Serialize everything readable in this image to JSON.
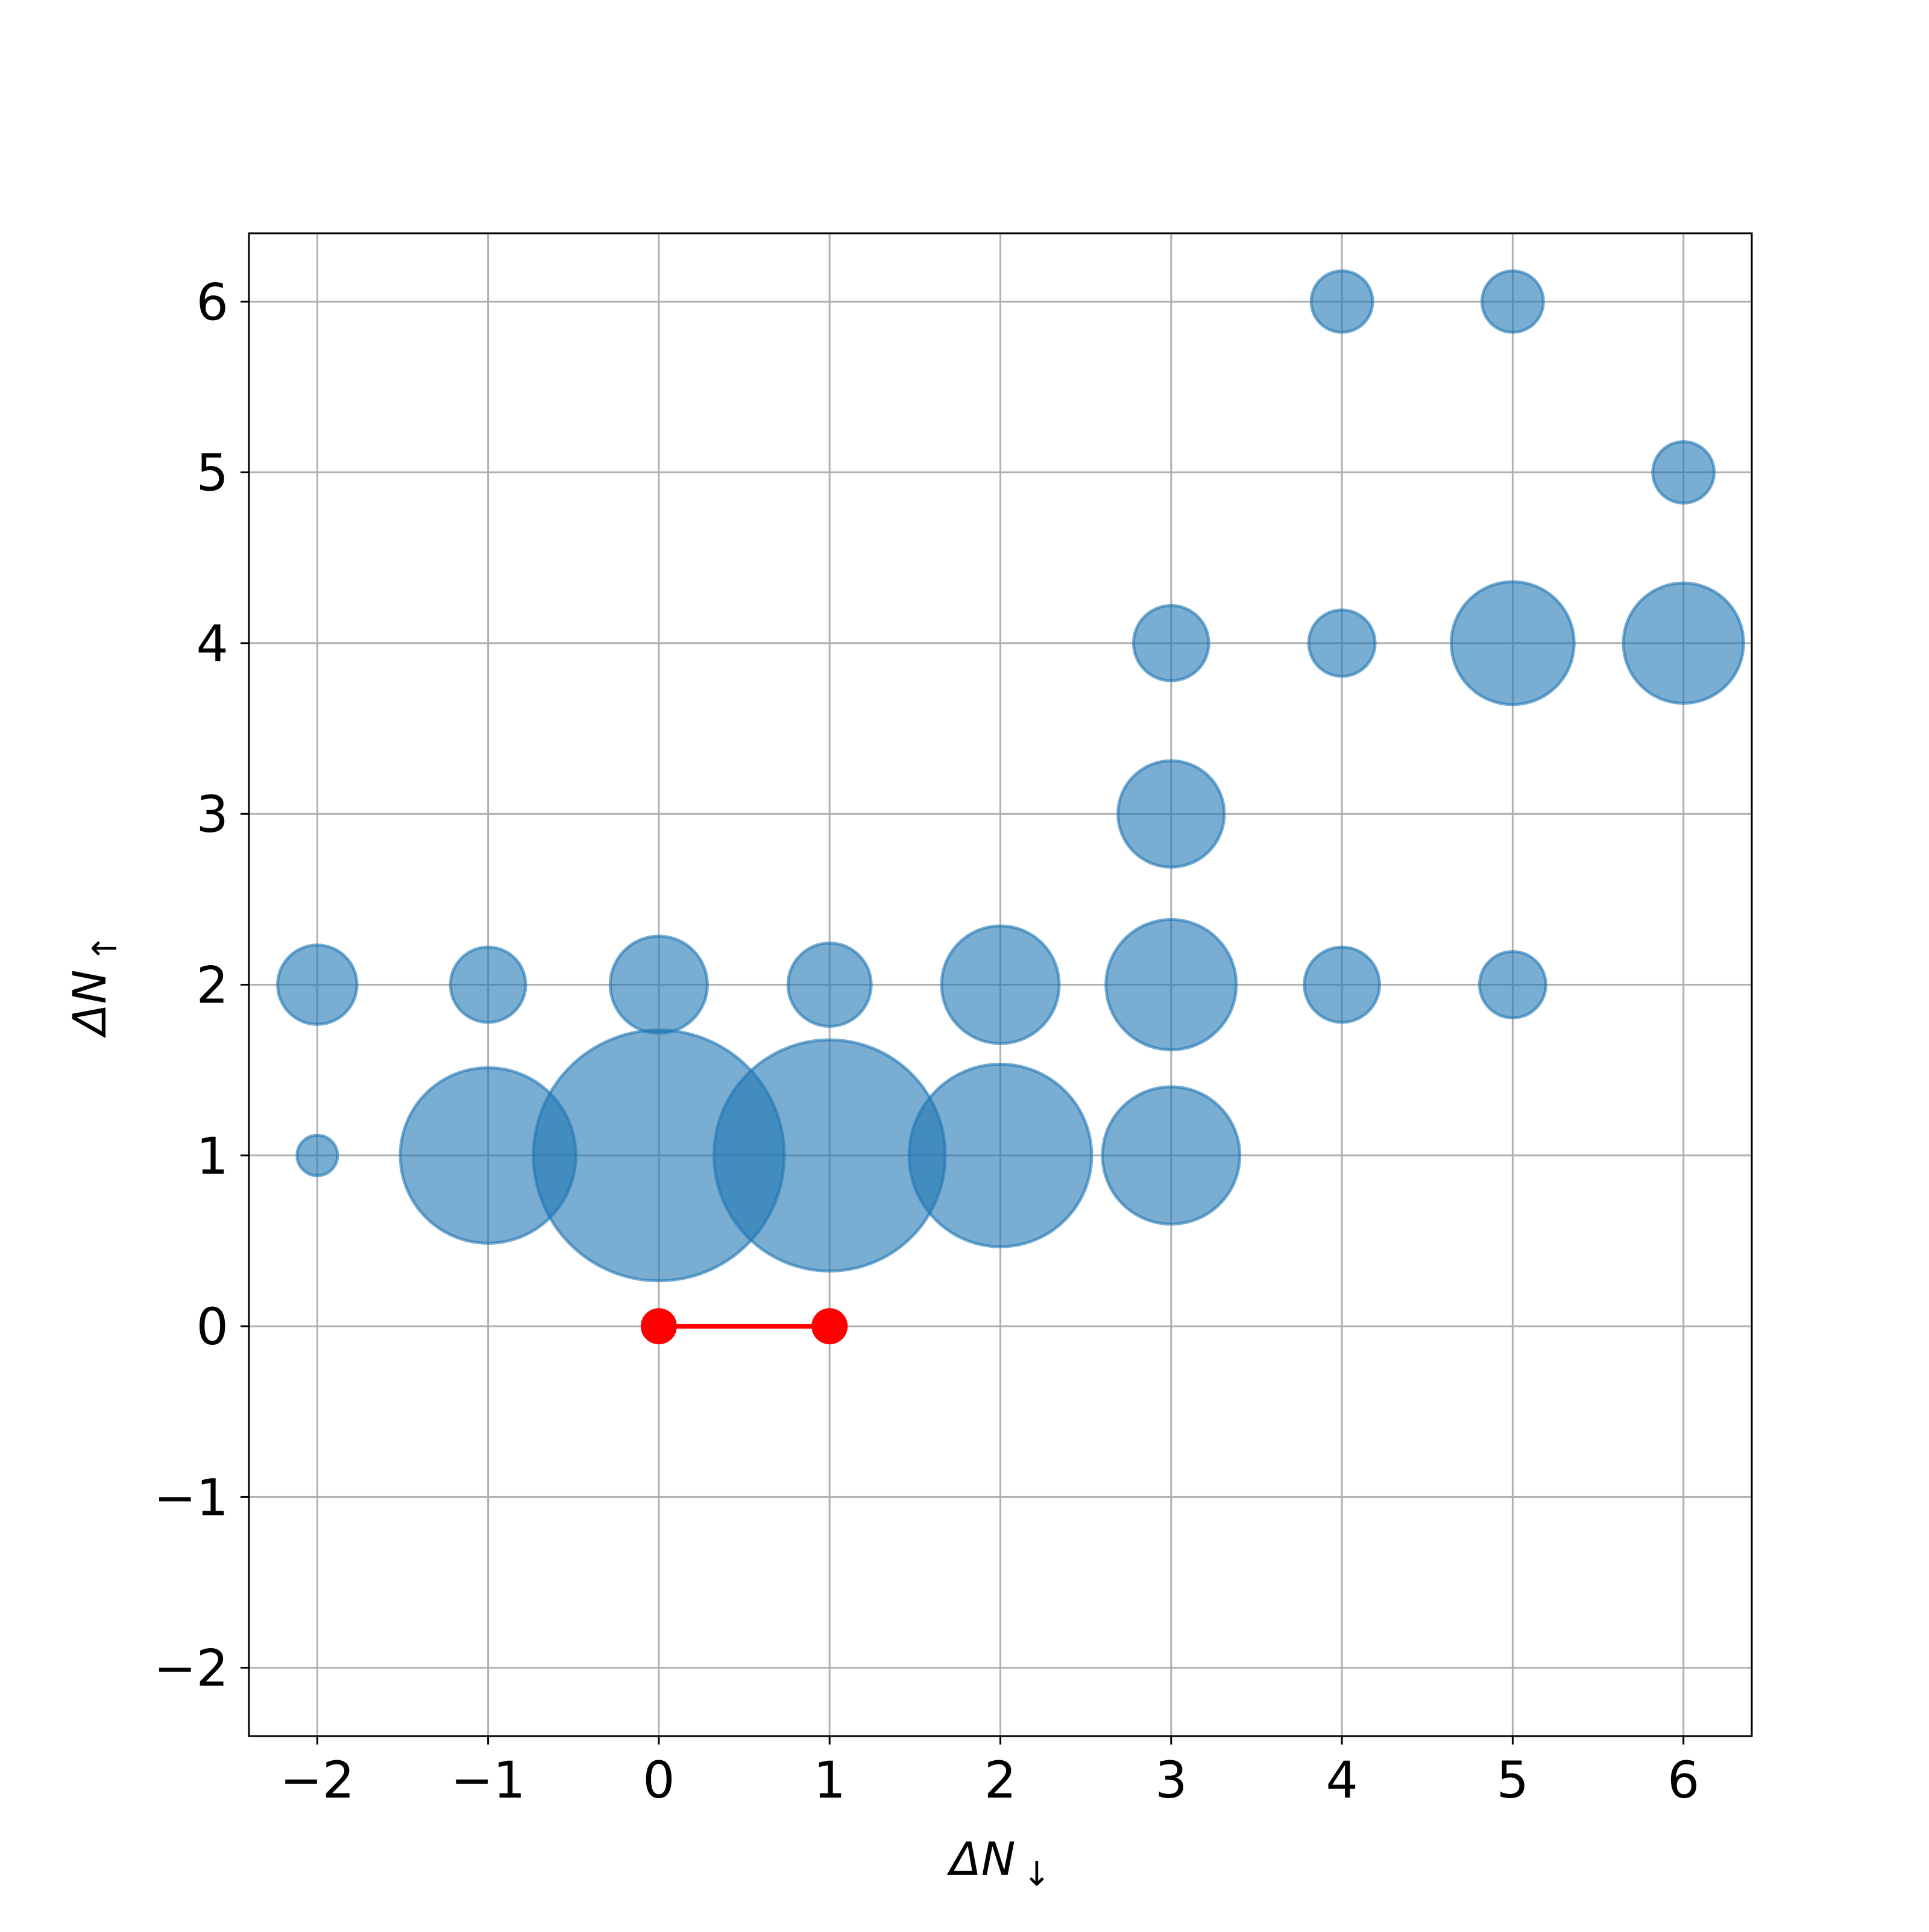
{
  "chart_data": {
    "type": "scatter",
    "title": "",
    "xlabel": "ΔN",
    "xlabel_subscript": "↓",
    "ylabel": "ΔN",
    "ylabel_subscript": "↑",
    "xlim": [
      -2.4,
      6.4
    ],
    "ylim": [
      -2.4,
      6.4
    ],
    "x_ticks": [
      -2,
      -1,
      0,
      1,
      2,
      3,
      4,
      5,
      6
    ],
    "y_ticks": [
      -2,
      -1,
      0,
      1,
      2,
      3,
      4,
      5,
      6
    ],
    "x_tick_labels": [
      "−2",
      "−1",
      "0",
      "1",
      "2",
      "3",
      "4",
      "5",
      "6"
    ],
    "y_tick_labels": [
      "−2",
      "−1",
      "0",
      "1",
      "2",
      "3",
      "4",
      "5",
      "6"
    ],
    "grid": true,
    "series": [
      {
        "kind": "bubble",
        "color": "#1f77b4",
        "alpha": 0.6,
        "points": [
          {
            "x": -2,
            "y": 1,
            "weight": 0.026
          },
          {
            "x": -1,
            "y": 1,
            "weight": 0.49
          },
          {
            "x": 0,
            "y": 1,
            "weight": 1.0
          },
          {
            "x": 1,
            "y": 1,
            "weight": 0.85
          },
          {
            "x": 2,
            "y": 1,
            "weight": 0.53
          },
          {
            "x": 3,
            "y": 1,
            "weight": 0.3
          },
          {
            "x": -2,
            "y": 2,
            "weight": 0.1
          },
          {
            "x": -1,
            "y": 2,
            "weight": 0.09
          },
          {
            "x": 0,
            "y": 2,
            "weight": 0.15
          },
          {
            "x": 1,
            "y": 2,
            "weight": 0.11
          },
          {
            "x": 2,
            "y": 2,
            "weight": 0.22
          },
          {
            "x": 3,
            "y": 2,
            "weight": 0.27
          },
          {
            "x": 4,
            "y": 2,
            "weight": 0.09
          },
          {
            "x": 5,
            "y": 2,
            "weight": 0.07
          },
          {
            "x": 3,
            "y": 3,
            "weight": 0.18
          },
          {
            "x": 3,
            "y": 4,
            "weight": 0.09
          },
          {
            "x": 4,
            "y": 4,
            "weight": 0.07
          },
          {
            "x": 5,
            "y": 4,
            "weight": 0.24
          },
          {
            "x": 6,
            "y": 4,
            "weight": 0.23
          },
          {
            "x": 6,
            "y": 5,
            "weight": 0.06
          },
          {
            "x": 4,
            "y": 6,
            "weight": 0.06
          },
          {
            "x": 5,
            "y": 6,
            "weight": 0.06
          }
        ]
      },
      {
        "kind": "line",
        "color": "#ff0000",
        "points": [
          {
            "x": 0,
            "y": 0
          },
          {
            "x": 1,
            "y": 0
          }
        ]
      }
    ]
  }
}
